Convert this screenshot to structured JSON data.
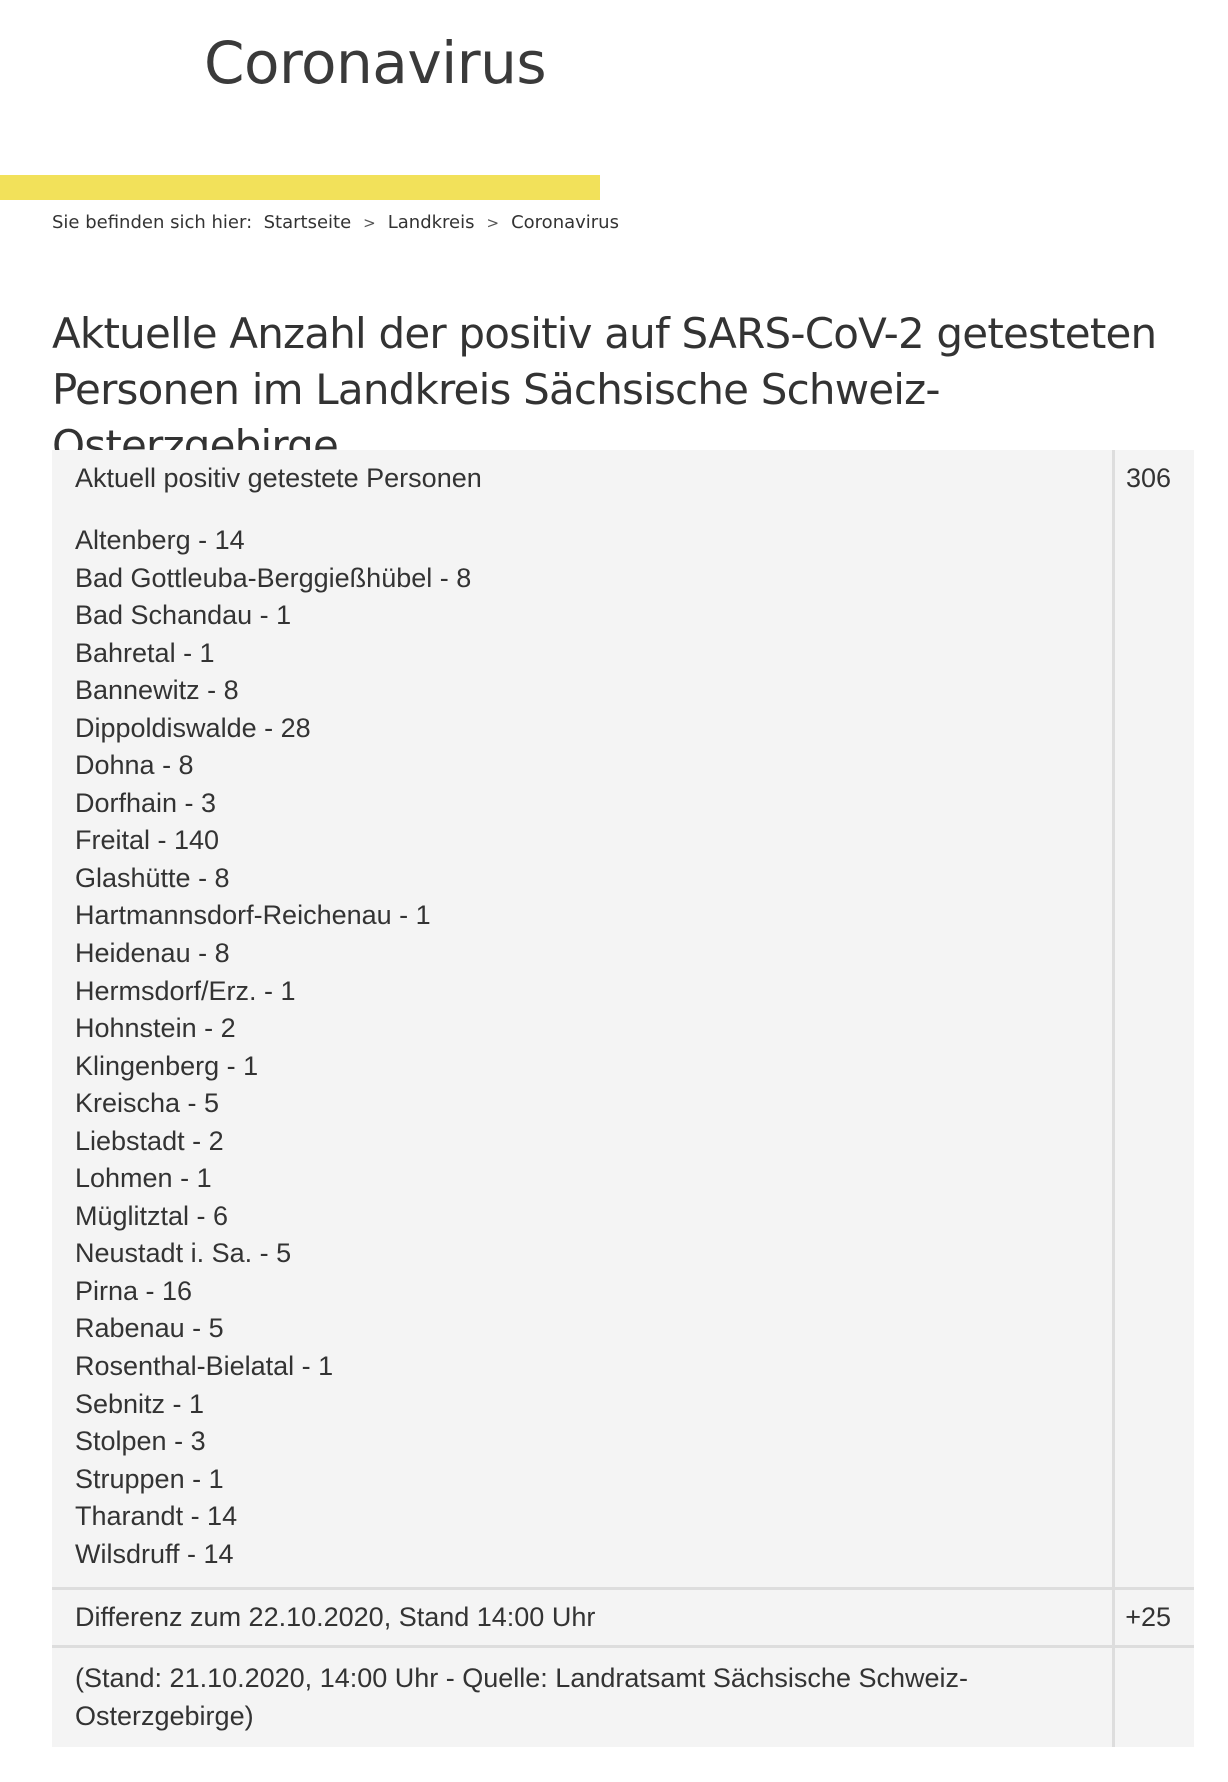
{
  "header": {
    "site_title": "Coronavirus"
  },
  "breadcrumb": {
    "prefix": "Sie befinden sich hier:",
    "items": [
      "Startseite",
      "Landkreis",
      "Coronavirus"
    ],
    "separator": ">"
  },
  "page": {
    "heading": "Aktuelle Anzahl der positiv auf SARS-CoV-2 getesteten Personen im Landkreis Sächsische Schweiz-Osterzgebirge"
  },
  "table": {
    "total_label": "Aktuell positiv getestete Personen",
    "total_value": "306",
    "towns": [
      "Altenberg - 14",
      "Bad Gottleuba-Berggießhübel - 8",
      "Bad Schandau - 1",
      "Bahretal - 1",
      "Bannewitz - 8",
      "Dippoldiswalde - 28",
      "Dohna - 8",
      "Dorfhain - 3",
      "Freital - 140",
      "Glashütte - 8",
      "Hartmannsdorf-Reichenau - 1",
      "Heidenau - 8",
      "Hermsdorf/Erz. - 1",
      "Hohnstein - 2",
      "Klingenberg - 1",
      "Kreischa - 5",
      "Liebstadt - 2",
      "Lohmen - 1",
      "Müglitztal - 6",
      "Neustadt i. Sa. - 5",
      "Pirna - 16",
      "Rabenau - 5",
      "Rosenthal-Bielatal - 1",
      "Sebnitz - 1",
      "Stolpen - 3",
      "Struppen - 1",
      "Tharandt - 14",
      "Wilsdruff - 14"
    ],
    "diff_label": "Differenz zum 22.10.2020, Stand 14:00 Uhr",
    "diff_value": "+25",
    "source_label": "(Stand: 21.10.2020, 14:00 Uhr - Quelle: Landratsamt Sächsische Schweiz-Osterzgebirge)",
    "source_value": ""
  },
  "colors": {
    "accent_bar": "#f2e15a",
    "table_background": "#f4f4f4",
    "table_divider": "#dddddd",
    "text": "#333333"
  }
}
